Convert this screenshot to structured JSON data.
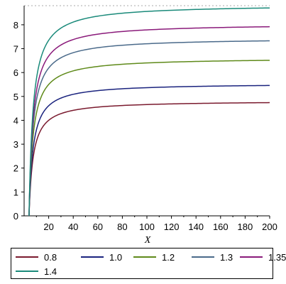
{
  "chart_data": {
    "type": "line",
    "title": "",
    "xlabel": "X",
    "ylabel": "",
    "xlim": [
      0,
      200
    ],
    "ylim": [
      0,
      8.8
    ],
    "x_ticks": [
      "20",
      "40",
      "60",
      "80",
      "100",
      "120",
      "140",
      "160",
      "180",
      "200"
    ],
    "y_ticks": [
      "0",
      "1",
      "2",
      "3",
      "4",
      "5",
      "6",
      "7",
      "8"
    ],
    "legend_placement": "bottom",
    "series": [
      {
        "name": "0.8",
        "color": "#7a1a2e",
        "asymptote": 4.82,
        "x": [
          4,
          5,
          7,
          10,
          15,
          20,
          30,
          40,
          60,
          80,
          100,
          120,
          140,
          160,
          180,
          200
        ],
        "values": [
          0.0,
          1.2,
          2.4,
          3.15,
          3.72,
          4.0,
          4.25,
          4.38,
          4.52,
          4.59,
          4.63,
          4.66,
          4.69,
          4.71,
          4.72,
          4.74
        ]
      },
      {
        "name": "1.0",
        "color": "#1a237e",
        "asymptote": 5.55,
        "x": [
          4,
          5,
          7,
          10,
          15,
          20,
          30,
          40,
          60,
          80,
          100,
          120,
          140,
          160,
          180,
          200
        ],
        "values": [
          0.0,
          1.39,
          2.77,
          3.63,
          4.29,
          4.61,
          4.9,
          5.05,
          5.21,
          5.29,
          5.34,
          5.37,
          5.4,
          5.42,
          5.44,
          5.46
        ]
      },
      {
        "name": "1.2",
        "color": "#5f8a1a",
        "asymptote": 6.62,
        "x": [
          4,
          5,
          7,
          10,
          15,
          20,
          30,
          40,
          60,
          80,
          100,
          120,
          140,
          160,
          180,
          200
        ],
        "values": [
          0.0,
          1.65,
          3.31,
          4.33,
          5.12,
          5.5,
          5.85,
          6.02,
          6.21,
          6.31,
          6.37,
          6.41,
          6.44,
          6.46,
          6.48,
          6.5
        ]
      },
      {
        "name": "1.3",
        "color": "#4a6a8a",
        "asymptote": 7.45,
        "x": [
          4,
          5,
          7,
          10,
          15,
          20,
          30,
          40,
          60,
          80,
          100,
          120,
          140,
          160,
          180,
          200
        ],
        "values": [
          0.0,
          1.86,
          3.72,
          4.87,
          5.76,
          6.19,
          6.58,
          6.78,
          6.99,
          7.1,
          7.17,
          7.21,
          7.25,
          7.27,
          7.29,
          7.31
        ]
      },
      {
        "name": "1.35",
        "color": "#8a1a7a",
        "asymptote": 8.05,
        "x": [
          4,
          5,
          7,
          10,
          15,
          20,
          30,
          40,
          60,
          80,
          100,
          120,
          140,
          160,
          180,
          200
        ],
        "values": [
          0.0,
          2.01,
          4.02,
          5.27,
          6.22,
          6.69,
          7.11,
          7.32,
          7.55,
          7.67,
          7.74,
          7.79,
          7.83,
          7.86,
          7.88,
          7.9
        ]
      },
      {
        "name": "1.4",
        "color": "#1a8a7a",
        "asymptote": 8.85,
        "x": [
          4,
          5,
          7,
          10,
          15,
          20,
          30,
          40,
          60,
          80,
          100,
          120,
          140,
          160,
          180,
          200
        ],
        "values": [
          0.0,
          2.21,
          4.42,
          5.79,
          6.84,
          7.35,
          7.82,
          8.05,
          8.3,
          8.43,
          8.51,
          8.56,
          8.6,
          8.63,
          8.66,
          8.68
        ]
      }
    ]
  }
}
